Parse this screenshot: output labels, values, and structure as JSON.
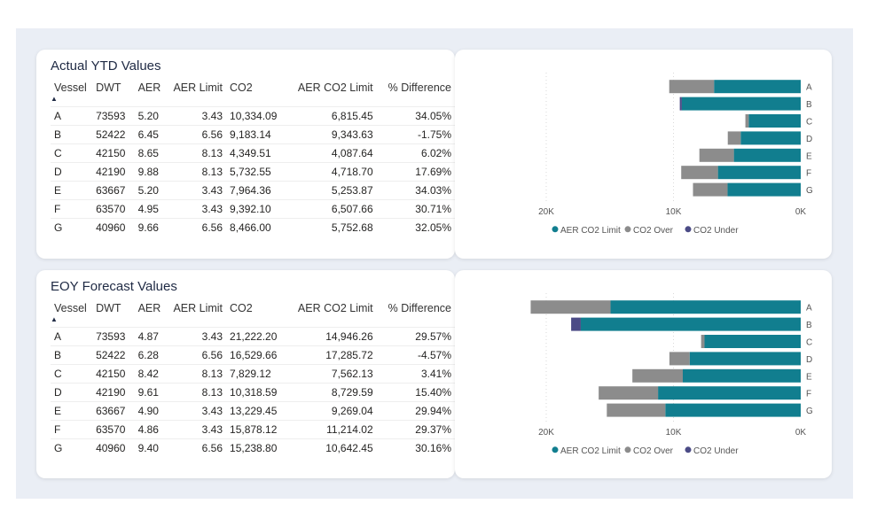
{
  "colors": {
    "aer_limit": "#117e8f",
    "co2_over": "#8c8c8c",
    "co2_under": "#4b4b86"
  },
  "ytd": {
    "title": "Actual YTD Values",
    "columns": [
      "Vessel",
      "DWT",
      "AER",
      "AER Limit",
      "CO2",
      "AER CO2 Limit",
      "% Difference"
    ],
    "rows": [
      [
        "A",
        "73593",
        "5.20",
        "3.43",
        "10,334.09",
        "6,815.45",
        "34.05%"
      ],
      [
        "B",
        "52422",
        "6.45",
        "6.56",
        "9,183.14",
        "9,343.63",
        "-1.75%"
      ],
      [
        "C",
        "42150",
        "8.65",
        "8.13",
        "4,349.51",
        "4,087.64",
        "6.02%"
      ],
      [
        "D",
        "42190",
        "9.88",
        "8.13",
        "5,732.55",
        "4,718.70",
        "17.69%"
      ],
      [
        "E",
        "63667",
        "5.20",
        "3.43",
        "7,964.36",
        "5,253.87",
        "34.03%"
      ],
      [
        "F",
        "63570",
        "4.95",
        "3.43",
        "9,392.10",
        "6,507.66",
        "30.71%"
      ],
      [
        "G",
        "40960",
        "9.66",
        "6.56",
        "8,466.00",
        "5,752.68",
        "32.05%"
      ]
    ]
  },
  "eoy": {
    "title": "EOY Forecast Values",
    "columns": [
      "Vessel",
      "DWT",
      "AER",
      "AER Limit",
      "CO2",
      "AER CO2 Limit",
      "% Difference"
    ],
    "rows": [
      [
        "A",
        "73593",
        "4.87",
        "3.43",
        "21,222.20",
        "14,946.26",
        "29.57%"
      ],
      [
        "B",
        "52422",
        "6.28",
        "6.56",
        "16,529.66",
        "17,285.72",
        "-4.57%"
      ],
      [
        "C",
        "42150",
        "8.42",
        "8.13",
        "7,829.12",
        "7,562.13",
        "3.41%"
      ],
      [
        "D",
        "42190",
        "9.61",
        "8.13",
        "10,318.59",
        "8,729.59",
        "15.40%"
      ],
      [
        "E",
        "63667",
        "4.90",
        "3.43",
        "13,229.45",
        "9,269.04",
        "29.94%"
      ],
      [
        "F",
        "63570",
        "4.86",
        "3.43",
        "15,878.12",
        "11,214.02",
        "29.37%"
      ],
      [
        "G",
        "40960",
        "9.40",
        "6.56",
        "15,238.80",
        "10,642.45",
        "30.16%"
      ]
    ]
  },
  "chart_data": [
    {
      "type": "bar",
      "orientation": "horizontal-reversed",
      "categories": [
        "A",
        "B",
        "C",
        "D",
        "E",
        "F",
        "G"
      ],
      "series": [
        {
          "name": "AER CO2 Limit",
          "values": [
            6815.45,
            9343.63,
            4087.64,
            4718.7,
            5253.87,
            6507.66,
            5752.68
          ]
        },
        {
          "name": "CO2 Over",
          "values": [
            3518.64,
            0,
            261.87,
            1013.85,
            2710.49,
            2884.44,
            2713.32
          ]
        },
        {
          "name": "CO2 Under",
          "values": [
            0,
            160.49,
            0,
            0,
            0,
            0,
            0
          ]
        }
      ],
      "xlim": [
        20000,
        0
      ],
      "ticks": [
        "20K",
        "10K",
        "0K"
      ],
      "tick_values": [
        20000,
        10000,
        0
      ],
      "legend": "bottom-center",
      "grid": true
    },
    {
      "type": "bar",
      "orientation": "horizontal-reversed",
      "categories": [
        "A",
        "B",
        "C",
        "D",
        "E",
        "F",
        "G"
      ],
      "series": [
        {
          "name": "AER CO2 Limit",
          "values": [
            14946.26,
            17285.72,
            7562.13,
            8729.59,
            9269.04,
            11214.02,
            10642.45
          ]
        },
        {
          "name": "CO2 Over",
          "values": [
            6275.94,
            0,
            266.99,
            1589.0,
            3960.41,
            4664.1,
            4596.35
          ]
        },
        {
          "name": "CO2 Under",
          "values": [
            0,
            756.06,
            0,
            0,
            0,
            0,
            0
          ]
        }
      ],
      "xlim": [
        20000,
        0
      ],
      "ticks": [
        "20K",
        "10K",
        "0K"
      ],
      "tick_values": [
        20000,
        10000,
        0
      ],
      "legend": "bottom-center",
      "grid": true
    }
  ]
}
